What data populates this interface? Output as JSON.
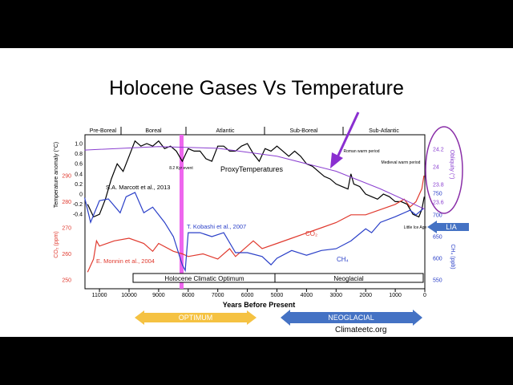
{
  "slide": {
    "title": "Holocene Gases Vs Temperature",
    "credit": "Climateetc.org"
  },
  "colors": {
    "temp": "#000000",
    "co2": "#e03a2f",
    "ch4": "#2a3fc8",
    "obliquity": "#8a3fd0",
    "event": "#ee66ee",
    "arrow_yellow": "#f5c242",
    "arrow_blue": "#4472c4"
  },
  "chart_data": {
    "type": "line",
    "title": "Holocene Gases Vs Temperature",
    "xlabel": "Years Before Present",
    "xlim": [
      11500,
      0
    ],
    "xticks": [
      "11000",
      "10000",
      "9000",
      "8000",
      "7000",
      "6000",
      "5000",
      "4000",
      "3000",
      "2000",
      "1000",
      "0"
    ],
    "periods": [
      "Pre-Boreal",
      "Boreal",
      "Atlantic",
      "Sub-Boreal",
      "Sub-Atlantic"
    ],
    "axes": {
      "temp": {
        "label": "Temperature anomaly (°C)",
        "ticks": [
          "1.0",
          "0.8",
          "0.6",
          "0.4",
          "0.2",
          "0",
          "-0.2",
          "-0.4"
        ],
        "ylim": [
          -0.4,
          1.0
        ]
      },
      "co2": {
        "label": "CO₂ (ppm)",
        "ticks": [
          "290",
          "280",
          "270",
          "260",
          "250"
        ],
        "ylim": [
          250,
          290
        ]
      },
      "ch4": {
        "label": "CH₄ (ppb)",
        "ticks": [
          "750",
          "700",
          "650",
          "600",
          "550"
        ],
        "ylim": [
          550,
          750
        ]
      },
      "obliquity": {
        "label": "Obliquity (°)",
        "ticks": [
          "24.2",
          "24",
          "23.8",
          "23.6"
        ],
        "ylim": [
          23.6,
          24.2
        ]
      }
    },
    "series": [
      {
        "name": "ProxyTemperatures",
        "axis": "temp",
        "x": [
          11400,
          11200,
          11000,
          10800,
          10600,
          10400,
          10200,
          10000,
          9800,
          9600,
          9400,
          9200,
          9000,
          8800,
          8600,
          8400,
          8200,
          8000,
          7800,
          7600,
          7400,
          7200,
          7000,
          6800,
          6600,
          6400,
          6200,
          6000,
          5800,
          5600,
          5400,
          5200,
          5000,
          4800,
          4600,
          4400,
          4200,
          4000,
          3800,
          3600,
          3400,
          3200,
          3000,
          2800,
          2600,
          2500,
          2400,
          2200,
          2000,
          1800,
          1600,
          1400,
          1200,
          1000,
          800,
          600,
          400,
          200,
          100,
          20
        ],
        "y": [
          -0.2,
          -0.45,
          -0.4,
          -0.1,
          0.3,
          0.6,
          0.45,
          0.75,
          1.05,
          0.95,
          1.0,
          0.95,
          1.05,
          0.9,
          0.95,
          0.85,
          0.65,
          0.9,
          0.85,
          0.85,
          0.7,
          0.65,
          0.95,
          0.95,
          0.85,
          0.85,
          0.95,
          1.0,
          0.8,
          0.65,
          0.9,
          0.85,
          0.95,
          0.85,
          0.75,
          0.85,
          0.75,
          0.6,
          0.55,
          0.45,
          0.35,
          0.3,
          0.2,
          0.15,
          0.1,
          0.4,
          0.2,
          0.15,
          0.0,
          -0.05,
          -0.1,
          0.0,
          -0.05,
          -0.15,
          -0.15,
          -0.2,
          -0.4,
          -0.45,
          -0.3,
          -0.05
        ]
      },
      {
        "name": "CO2",
        "axis": "co2",
        "x": [
          11400,
          11200,
          11100,
          11000,
          10500,
          10000,
          9500,
          9200,
          9000,
          8500,
          8200,
          8000,
          7500,
          7000,
          6600,
          6400,
          6000,
          5800,
          5500,
          5000,
          4500,
          4000,
          3500,
          3000,
          2500,
          2000,
          1500,
          1000,
          700,
          500,
          300,
          100,
          30
        ],
        "y": [
          253,
          258,
          265,
          263,
          265,
          266,
          264,
          261,
          264,
          261,
          260,
          259,
          260,
          258,
          262,
          259,
          263,
          265,
          262,
          264,
          266,
          268,
          270,
          272,
          275,
          275,
          277,
          279,
          281,
          278,
          280,
          285,
          290
        ]
      },
      {
        "name": "CH4",
        "axis": "ch4",
        "x": [
          11500,
          11300,
          11000,
          10700,
          10300,
          10100,
          9800,
          9500,
          9200,
          8800,
          8500,
          8200,
          8100,
          8000,
          7600,
          7200,
          6800,
          6400,
          6000,
          5500,
          5200,
          5000,
          4500,
          4000,
          3500,
          3000,
          2500,
          2000,
          1800,
          1500,
          1000,
          500,
          300,
          50
        ],
        "y": [
          740,
          683,
          733,
          737,
          705,
          742,
          752,
          705,
          718,
          683,
          650,
          585,
          572,
          659,
          659,
          650,
          659,
          613,
          613,
          604,
          585,
          600,
          618,
          607,
          618,
          622,
          640,
          668,
          659,
          683,
          696,
          711,
          700,
          715
        ]
      },
      {
        "name": "Obliquity",
        "axis": "obliquity",
        "x": [
          11500,
          9000,
          7000,
          5000,
          3000,
          1500,
          0
        ],
        "y": [
          24.19,
          24.23,
          24.21,
          24.12,
          23.95,
          23.75,
          23.52
        ]
      }
    ],
    "annotations": [
      "S.A. Marcott et al., 2013",
      "ProxyTemperatures",
      "T. Kobashi et al., 2007",
      "E. Monnin et al., 2004",
      "CO₂",
      "CH₄",
      "8.2 Kyr event",
      "Roman warm period",
      "Medieval warm period",
      "Little Ice Age",
      "Holocene Climatic Optimum",
      "Neoglacial",
      "LIA",
      "OPTIMUM",
      "NEOGLACIAL"
    ]
  }
}
